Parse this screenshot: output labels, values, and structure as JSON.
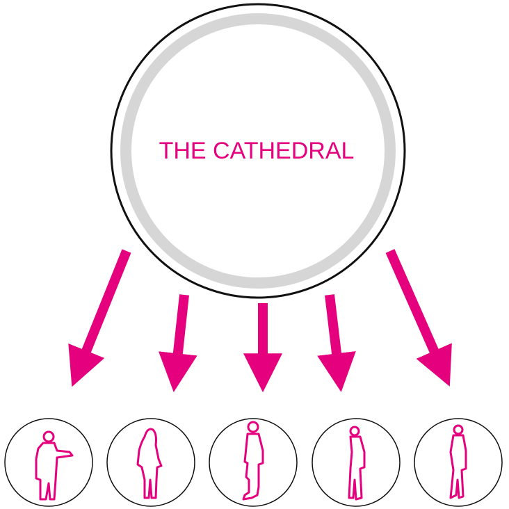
{
  "center": {
    "label": "THE CATHEDRAL"
  },
  "colors": {
    "accent": "#e5007e",
    "outline": "#111111",
    "ring": "#d6d6d6",
    "background": "#ffffff"
  },
  "people": [
    {
      "icon": "person-pointing-icon"
    },
    {
      "icon": "person-long-hair-icon"
    },
    {
      "icon": "person-standing-side-icon"
    },
    {
      "icon": "person-standing-profile-icon"
    },
    {
      "icon": "person-hands-in-pockets-icon"
    }
  ]
}
